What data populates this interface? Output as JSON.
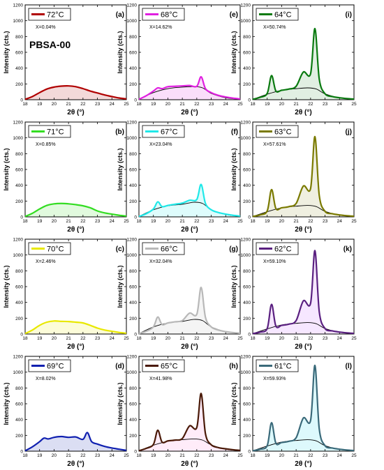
{
  "figure": {
    "ylabel": "Intensity (cts.)",
    "xlabel": "2θ (°)",
    "sample_label": "PBSA-00"
  },
  "chart_data": [
    {
      "type": "line",
      "panel": "(a)",
      "legend": "72°C",
      "x_fraction": "X=0.04%",
      "color": "#b00000",
      "fill": "#b00000",
      "tint": 0.15,
      "xlim": [
        18,
        25
      ],
      "ylim": [
        0,
        1200
      ],
      "xticks": [
        18,
        19,
        20,
        21,
        22,
        23,
        24,
        25
      ],
      "yticks": [
        0,
        200,
        400,
        600,
        800,
        1000,
        1200
      ],
      "series": [
        {
          "x": [
            18,
            18.5,
            19,
            19.5,
            20,
            20.5,
            21,
            21.5,
            22,
            22.5,
            23,
            23.5,
            24,
            24.5,
            25
          ],
          "y": [
            5,
            40,
            90,
            135,
            160,
            172,
            175,
            165,
            140,
            110,
            85,
            60,
            40,
            22,
            10
          ]
        }
      ],
      "amorphous": null
    },
    {
      "type": "line",
      "panel": "(b)",
      "legend": "71°C",
      "x_fraction": "X=0.85%",
      "color": "#33dd22",
      "fill": "#33dd22",
      "tint": 0.15,
      "xlim": [
        18,
        25
      ],
      "ylim": [
        0,
        1200
      ],
      "xticks": [
        18,
        19,
        20,
        21,
        22,
        23,
        24,
        25
      ],
      "yticks": [
        0,
        200,
        400,
        600,
        800,
        1000,
        1200
      ],
      "series": [
        {
          "x": [
            18,
            18.5,
            19,
            19.5,
            20,
            20.5,
            21,
            21.5,
            22,
            22.5,
            23,
            23.5,
            24,
            24.5,
            25
          ],
          "y": [
            5,
            45,
            100,
            145,
            165,
            170,
            165,
            155,
            140,
            115,
            75,
            50,
            35,
            20,
            10
          ]
        }
      ],
      "amorphous": null
    },
    {
      "type": "line",
      "panel": "(c)",
      "legend": "70°C",
      "x_fraction": "X=2.46%",
      "color": "#e8e800",
      "fill": "#e8e800",
      "tint": 0.15,
      "xlim": [
        18,
        25
      ],
      "ylim": [
        0,
        1200
      ],
      "xticks": [
        18,
        19,
        20,
        21,
        22,
        23,
        24,
        25
      ],
      "yticks": [
        0,
        200,
        400,
        600,
        800,
        1000,
        1200
      ],
      "series": [
        {
          "x": [
            18,
            18.5,
            19,
            19.5,
            20,
            20.5,
            21,
            21.5,
            22,
            22.5,
            23,
            23.5,
            24,
            24.5,
            25
          ],
          "y": [
            5,
            50,
            110,
            150,
            165,
            160,
            158,
            150,
            140,
            110,
            75,
            50,
            35,
            20,
            10
          ]
        }
      ],
      "amorphous": null
    },
    {
      "type": "line",
      "panel": "(d)",
      "legend": "69°C",
      "x_fraction": "X=8.02%",
      "color": "#1020b0",
      "fill": "#1020b0",
      "tint": 0.15,
      "xlim": [
        18,
        25
      ],
      "ylim": [
        0,
        1200
      ],
      "xticks": [
        18,
        19,
        20,
        21,
        22,
        23,
        24,
        25
      ],
      "yticks": [
        0,
        200,
        400,
        600,
        800,
        1000,
        1200
      ],
      "series": [
        {
          "x": [
            18,
            18.5,
            19,
            19.3,
            19.6,
            20,
            20.5,
            21,
            21.5,
            22,
            22.3,
            22.6,
            23,
            23.5,
            24,
            24.5,
            25
          ],
          "y": [
            5,
            55,
            120,
            165,
            155,
            175,
            185,
            175,
            180,
            150,
            235,
            120,
            90,
            60,
            40,
            25,
            10
          ]
        }
      ],
      "amorphous": null
    },
    {
      "type": "line",
      "panel": "(e)",
      "legend": "68°C",
      "x_fraction": "X=14.62%",
      "color": "#e020e0",
      "fill": "#e020e0",
      "tint": 0.15,
      "xlim": [
        18,
        25
      ],
      "ylim": [
        0,
        1200
      ],
      "xticks": [
        18,
        19,
        20,
        21,
        22,
        23,
        24,
        25
      ],
      "yticks": [
        0,
        200,
        400,
        600,
        800,
        1000,
        1200
      ],
      "series": [
        {
          "x": [
            18,
            18.5,
            19,
            19.3,
            19.6,
            20,
            20.5,
            21,
            21.5,
            22,
            22.3,
            22.6,
            23,
            23.5,
            24,
            24.5,
            25
          ],
          "y": [
            5,
            50,
            110,
            150,
            140,
            165,
            170,
            175,
            180,
            170,
            290,
            140,
            90,
            55,
            35,
            20,
            10
          ]
        }
      ],
      "amorphous": {
        "x": [
          18,
          19,
          20,
          21,
          21.8,
          22.4,
          23,
          24,
          25
        ],
        "y": [
          5,
          90,
          140,
          160,
          165,
          150,
          80,
          25,
          5
        ]
      }
    },
    {
      "type": "line",
      "panel": "(f)",
      "legend": "67°C",
      "x_fraction": "X=23.04%",
      "color": "#20e8e8",
      "fill": "#20e8e8",
      "tint": 0.15,
      "xlim": [
        18,
        25
      ],
      "ylim": [
        0,
        1200
      ],
      "xticks": [
        18,
        19,
        20,
        21,
        22,
        23,
        24,
        25
      ],
      "yticks": [
        0,
        200,
        400,
        600,
        800,
        1000,
        1200
      ],
      "series": [
        {
          "x": [
            18,
            18.5,
            19,
            19.3,
            19.6,
            20,
            20.5,
            21,
            21.5,
            22,
            22.3,
            22.6,
            23,
            23.5,
            24,
            24.5,
            25
          ],
          "y": [
            5,
            40,
            100,
            190,
            130,
            145,
            160,
            175,
            210,
            220,
            410,
            170,
            90,
            55,
            35,
            20,
            10
          ]
        }
      ],
      "amorphous": {
        "x": [
          18,
          19,
          20,
          21,
          21.8,
          22.4,
          23,
          24,
          25
        ],
        "y": [
          5,
          90,
          140,
          160,
          185,
          170,
          90,
          30,
          5
        ]
      }
    },
    {
      "type": "line",
      "panel": "(g)",
      "legend": "66°C",
      "x_fraction": "X=32.04%",
      "color": "#b8b8b8",
      "fill": "#b8b8b8",
      "tint": 0.15,
      "xlim": [
        18,
        25
      ],
      "ylim": [
        0,
        1200
      ],
      "xticks": [
        18,
        19,
        20,
        21,
        22,
        23,
        24,
        25
      ],
      "yticks": [
        0,
        200,
        400,
        600,
        800,
        1000,
        1200
      ],
      "series": [
        {
          "x": [
            18,
            18.5,
            19,
            19.3,
            19.6,
            20,
            20.5,
            21,
            21.5,
            22,
            22.3,
            22.6,
            23,
            23.5,
            24,
            24.5,
            25
          ],
          "y": [
            5,
            35,
            90,
            215,
            120,
            140,
            155,
            170,
            265,
            250,
            590,
            210,
            90,
            50,
            30,
            18,
            10
          ]
        }
      ],
      "amorphous": {
        "x": [
          18,
          19,
          20,
          21,
          21.8,
          22.4,
          23,
          24,
          25
        ],
        "y": [
          5,
          90,
          140,
          160,
          185,
          170,
          90,
          30,
          5
        ]
      }
    },
    {
      "type": "line",
      "panel": "(h)",
      "legend": "65°C",
      "x_fraction": "X=41.98%",
      "color": "#4a1a08",
      "fill": "#ff66cc",
      "tint": 0.12,
      "xlim": [
        18,
        25
      ],
      "ylim": [
        0,
        1200
      ],
      "xticks": [
        18,
        19,
        20,
        21,
        22,
        23,
        24,
        25
      ],
      "yticks": [
        0,
        200,
        400,
        600,
        800,
        1000,
        1200
      ],
      "series": [
        {
          "x": [
            18,
            18.5,
            19,
            19.3,
            19.6,
            20,
            20.5,
            21,
            21.5,
            22,
            22.3,
            22.6,
            23,
            23.5,
            24,
            24.5,
            25
          ],
          "y": [
            5,
            35,
            85,
            265,
            115,
            130,
            140,
            160,
            320,
            300,
            730,
            220,
            80,
            45,
            30,
            18,
            10
          ]
        }
      ],
      "amorphous": {
        "x": [
          18,
          19,
          20,
          21,
          21.8,
          22.4,
          23,
          24,
          25
        ],
        "y": [
          5,
          75,
          125,
          145,
          155,
          140,
          80,
          25,
          5
        ]
      }
    },
    {
      "type": "line",
      "panel": "(i)",
      "legend": "64°C",
      "x_fraction": "X=50.74%",
      "color": "#0a7a10",
      "fill": "#0a7a10",
      "tint": 0.12,
      "xlim": [
        18,
        25
      ],
      "ylim": [
        0,
        1200
      ],
      "xticks": [
        18,
        19,
        20,
        21,
        22,
        23,
        24,
        25
      ],
      "yticks": [
        0,
        200,
        400,
        600,
        800,
        1000,
        1200
      ],
      "series": [
        {
          "x": [
            18,
            18.5,
            19,
            19.3,
            19.6,
            20,
            20.5,
            21,
            21.5,
            22,
            22.3,
            22.6,
            23,
            23.5,
            24,
            24.5,
            25
          ],
          "y": [
            5,
            30,
            80,
            305,
            110,
            120,
            135,
            170,
            350,
            330,
            900,
            260,
            75,
            40,
            25,
            15,
            8
          ]
        }
      ],
      "amorphous": {
        "x": [
          18,
          19,
          20,
          21,
          21.8,
          22.4,
          23,
          24,
          25
        ],
        "y": [
          5,
          70,
          120,
          140,
          150,
          135,
          75,
          25,
          5
        ]
      }
    },
    {
      "type": "line",
      "panel": "(j)",
      "legend": "63°C",
      "x_fraction": "X=57.61%",
      "color": "#7a7a00",
      "fill": "#7a7a00",
      "tint": 0.12,
      "xlim": [
        18,
        25
      ],
      "ylim": [
        0,
        1200
      ],
      "xticks": [
        18,
        19,
        20,
        21,
        22,
        23,
        24,
        25
      ],
      "yticks": [
        0,
        200,
        400,
        600,
        800,
        1000,
        1200
      ],
      "series": [
        {
          "x": [
            18,
            18.5,
            19,
            19.3,
            19.6,
            20,
            20.5,
            21,
            21.5,
            22,
            22.3,
            22.6,
            23,
            23.5,
            24,
            24.5,
            25
          ],
          "y": [
            5,
            25,
            75,
            345,
            105,
            115,
            130,
            170,
            390,
            360,
            1015,
            270,
            70,
            40,
            25,
            15,
            8
          ]
        }
      ],
      "amorphous": {
        "x": [
          18,
          19,
          20,
          21,
          21.8,
          22.4,
          23,
          24,
          25
        ],
        "y": [
          5,
          65,
          115,
          135,
          145,
          130,
          70,
          22,
          5
        ]
      }
    },
    {
      "type": "line",
      "panel": "(k)",
      "legend": "62°C",
      "x_fraction": "X=59.10%",
      "color": "#5a2080",
      "fill": "#e0b0ff",
      "tint": 0.3,
      "xlim": [
        18,
        25
      ],
      "ylim": [
        0,
        1200
      ],
      "xticks": [
        18,
        19,
        20,
        21,
        22,
        23,
        24,
        25
      ],
      "yticks": [
        0,
        200,
        400,
        600,
        800,
        1000,
        1200
      ],
      "series": [
        {
          "x": [
            18,
            18.5,
            19,
            19.3,
            19.6,
            20,
            20.5,
            21,
            21.5,
            22,
            22.3,
            22.6,
            23,
            23.5,
            24,
            24.5,
            25
          ],
          "y": [
            5,
            25,
            70,
            375,
            100,
            110,
            125,
            170,
            420,
            390,
            1055,
            280,
            70,
            40,
            25,
            15,
            8
          ]
        }
      ],
      "amorphous": {
        "x": [
          18,
          19,
          20,
          21,
          21.8,
          22.4,
          23,
          24,
          25
        ],
        "y": [
          5,
          65,
          115,
          135,
          145,
          130,
          70,
          22,
          5
        ]
      }
    },
    {
      "type": "line",
      "panel": "(l)",
      "legend": "61°C",
      "x_fraction": "X=59.93%",
      "color": "#3a6a7a",
      "fill": "#40e0f0",
      "tint": 0.18,
      "xlim": [
        18,
        25
      ],
      "ylim": [
        0,
        1200
      ],
      "xticks": [
        18,
        19,
        20,
        21,
        22,
        23,
        24,
        25
      ],
      "yticks": [
        0,
        200,
        400,
        600,
        800,
        1000,
        1200
      ],
      "series": [
        {
          "x": [
            18,
            18.5,
            19,
            19.3,
            19.6,
            20,
            20.5,
            21,
            21.5,
            22,
            22.3,
            22.6,
            23,
            23.5,
            24,
            24.5,
            25
          ],
          "y": [
            5,
            25,
            70,
            360,
            100,
            110,
            125,
            170,
            420,
            390,
            1085,
            280,
            70,
            40,
            25,
            15,
            8
          ]
        }
      ],
      "amorphous": {
        "x": [
          18,
          19,
          20,
          21,
          21.8,
          22.4,
          23,
          24,
          25
        ],
        "y": [
          5,
          65,
          115,
          135,
          145,
          130,
          70,
          22,
          5
        ]
      }
    }
  ]
}
